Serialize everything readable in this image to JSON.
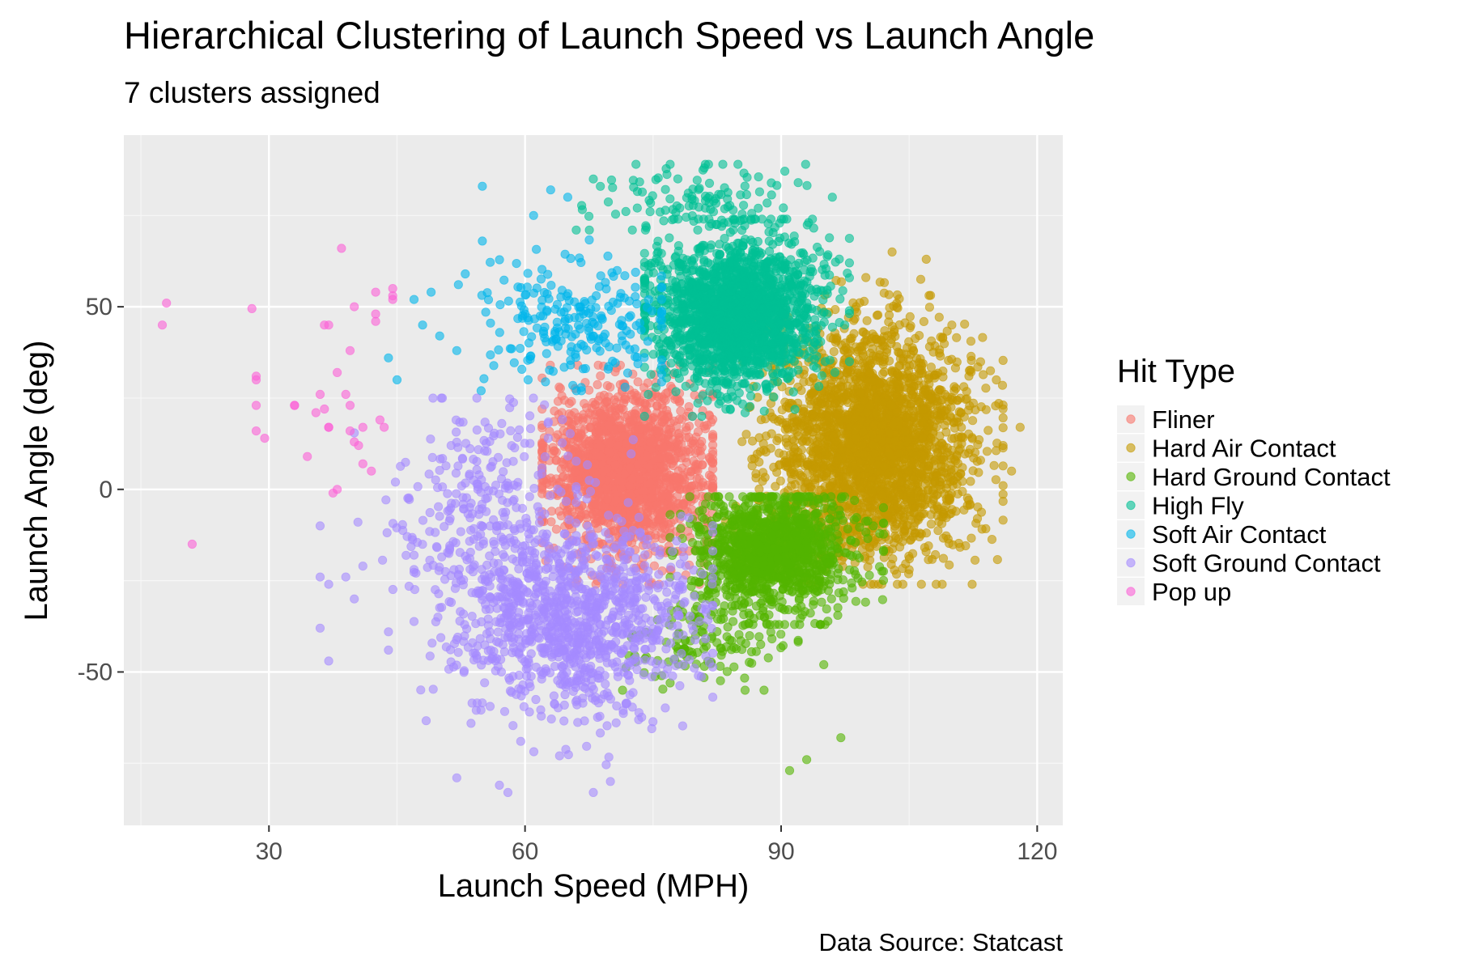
{
  "chart_data": {
    "type": "scatter",
    "title": "Hierarchical Clustering of Launch Speed vs Launch Angle",
    "subtitle": "7 clusters assigned",
    "xlabel": "Launch Speed (MPH)",
    "ylabel": "Launch Angle (deg)",
    "caption": "Data Source: Statcast",
    "xlim": [
      13,
      123
    ],
    "ylim": [
      -92,
      97
    ],
    "x_ticks": [
      30,
      60,
      90,
      120
    ],
    "y_ticks": [
      -50,
      0,
      50
    ],
    "x_minor_ticks": [
      15,
      45,
      75,
      105
    ],
    "y_minor_ticks": [
      -75,
      -25,
      25,
      75
    ],
    "grid": true,
    "panel_background": "#EBEBEB",
    "point_opacity": 0.6,
    "legend": {
      "title": "Hit Type",
      "position": "right"
    },
    "series": [
      {
        "name": "Fliner",
        "color": "#F8766D",
        "clusters": [
          {
            "count": 1800,
            "cx": 72,
            "cy": 5,
            "sx": 4.6,
            "sy": 11,
            "xmin": 62,
            "xmax": 82,
            "ymin": -26,
            "ymax": 34
          }
        ],
        "points": [
          [
            64,
            28
          ],
          [
            62,
            22
          ],
          [
            64,
            -6
          ],
          [
            77,
            -22
          ],
          [
            80,
            10
          ]
        ]
      },
      {
        "name": "Hard Air Contact",
        "color": "#C49A00",
        "clusters": [
          {
            "count": 2600,
            "cx": 101,
            "cy": 13,
            "sx": 5.6,
            "sy": 15,
            "xmin": 82,
            "xmax": 116,
            "ymin": -26,
            "ymax": 58
          }
        ],
        "points": [
          [
            103,
            65
          ],
          [
            107,
            63
          ],
          [
            118,
            17
          ],
          [
            116,
            12
          ],
          [
            113,
            -8
          ],
          [
            117,
            5
          ],
          [
            110,
            45
          ],
          [
            105,
            -22
          ],
          [
            112,
            31
          ]
        ]
      },
      {
        "name": "Hard Ground Contact",
        "color": "#53B400",
        "clusters": [
          {
            "count": 1300,
            "cx": 89,
            "cy": -17,
            "sx": 4.6,
            "sy": 8,
            "xmin": 77,
            "xmax": 102,
            "ymin": -37,
            "ymax": -2
          },
          {
            "count": 120,
            "cx": 81,
            "cy": -43,
            "sx": 5,
            "sy": 5,
            "xmin": 71,
            "xmax": 92,
            "ymin": -55,
            "ymax": -30
          }
        ],
        "points": [
          [
            91,
            -77
          ],
          [
            93,
            -74
          ],
          [
            97,
            -68
          ],
          [
            88,
            -55
          ],
          [
            95,
            -48
          ],
          [
            77,
            -53
          ],
          [
            76,
            -51
          ]
        ]
      },
      {
        "name": "High Fly",
        "color": "#00C094",
        "clusters": [
          {
            "count": 1900,
            "cx": 85,
            "cy": 48,
            "sx": 4.8,
            "sy": 10,
            "xmin": 74,
            "xmax": 98,
            "ymin": 20,
            "ymax": 74
          },
          {
            "count": 110,
            "cx": 80,
            "cy": 80,
            "sx": 6,
            "sy": 5,
            "xmin": 66,
            "xmax": 94,
            "ymin": 71,
            "ymax": 89
          }
        ],
        "points": [
          [
            73,
            89
          ],
          [
            77,
            89
          ],
          [
            81,
            88
          ],
          [
            92,
            84
          ],
          [
            96,
            80
          ],
          [
            68,
            85
          ]
        ]
      },
      {
        "name": "Soft Air Contact",
        "color": "#00B6EB",
        "clusters": [
          {
            "count": 230,
            "cx": 65,
            "cy": 45,
            "sx": 6,
            "sy": 9,
            "xmin": 50,
            "xmax": 76,
            "ymin": 27,
            "ymax": 70
          }
        ],
        "points": [
          [
            55,
            83
          ],
          [
            63,
            82
          ],
          [
            55,
            68
          ],
          [
            44,
            36
          ],
          [
            45,
            30
          ],
          [
            47,
            52
          ],
          [
            49,
            54
          ],
          [
            48,
            45
          ],
          [
            50,
            42
          ],
          [
            52,
            38
          ],
          [
            53,
            59
          ],
          [
            65,
            80
          ],
          [
            61,
            75
          ]
        ]
      },
      {
        "name": "Soft Ground Contact",
        "color": "#A58AFF",
        "clusters": [
          {
            "count": 1100,
            "cx": 65,
            "cy": -35,
            "sx": 7,
            "sy": 14,
            "xmin": 47,
            "xmax": 82,
            "ymin": -80,
            "ymax": 22
          },
          {
            "count": 260,
            "cx": 55,
            "cy": -5,
            "sx": 6,
            "sy": 15,
            "xmin": 40,
            "xmax": 66,
            "ymin": -50,
            "ymax": 25
          }
        ],
        "points": [
          [
            37,
            -47
          ],
          [
            36,
            -38
          ],
          [
            36,
            -24
          ],
          [
            37,
            -26
          ],
          [
            36,
            -10
          ],
          [
            44,
            -39
          ],
          [
            44,
            -44
          ],
          [
            40,
            -30
          ],
          [
            58,
            -83
          ],
          [
            68,
            -83
          ],
          [
            70,
            -80
          ],
          [
            52,
            -79
          ],
          [
            57,
            -81
          ],
          [
            39,
            -24
          ],
          [
            41,
            -21
          ]
        ]
      },
      {
        "name": "Pop up",
        "color": "#FB61D7",
        "points": [
          [
            17.5,
            45
          ],
          [
            18,
            51
          ],
          [
            28,
            49.5
          ],
          [
            28.5,
            31
          ],
          [
            28.5,
            30
          ],
          [
            28.5,
            23
          ],
          [
            28.5,
            16
          ],
          [
            29.5,
            14
          ],
          [
            21,
            -15
          ],
          [
            38.5,
            66
          ],
          [
            36.5,
            45
          ],
          [
            37,
            45
          ],
          [
            40,
            50
          ],
          [
            42.5,
            48
          ],
          [
            42.5,
            46
          ],
          [
            42.5,
            54
          ],
          [
            44.5,
            53
          ],
          [
            44.5,
            52
          ],
          [
            44.5,
            55
          ],
          [
            39.5,
            38
          ],
          [
            38,
            32
          ],
          [
            33,
            23
          ],
          [
            35.5,
            21
          ],
          [
            37,
            17
          ],
          [
            37,
            17
          ],
          [
            36.5,
            22
          ],
          [
            36,
            26
          ],
          [
            39.5,
            23
          ],
          [
            40.5,
            12
          ],
          [
            40,
            13
          ],
          [
            41,
            17
          ],
          [
            43,
            19
          ],
          [
            43.5,
            17
          ],
          [
            41,
            7
          ],
          [
            42,
            5
          ],
          [
            34.5,
            9
          ],
          [
            37.5,
            -1
          ],
          [
            38,
            0
          ],
          [
            39,
            26
          ],
          [
            33,
            23
          ],
          [
            39.5,
            16
          ]
        ]
      }
    ]
  }
}
